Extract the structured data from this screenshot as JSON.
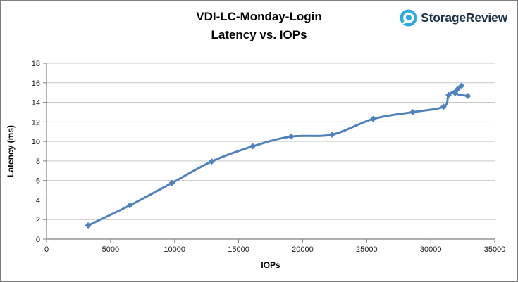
{
  "header": {
    "title_line1": "VDI-LC-Monday-Login",
    "title_line2": "Latency vs. IOPs"
  },
  "logo": {
    "text": "StorageReview",
    "icon": "storagereview-circle-icon",
    "icon_color": "#2FA9E0",
    "text_color": "#1D3448"
  },
  "chart_data": {
    "type": "line",
    "title": "VDI-LC-Monday-Login Latency vs. IOPs",
    "xlabel": "IOPs",
    "ylabel": "Latency (ms)",
    "xlim": [
      0,
      35000
    ],
    "ylim": [
      0,
      18
    ],
    "x_ticks": [
      0,
      5000,
      10000,
      15000,
      20000,
      25000,
      30000,
      35000
    ],
    "y_ticks": [
      0,
      2,
      4,
      6,
      8,
      10,
      12,
      14,
      16,
      18
    ],
    "grid": "horizontal",
    "legend": "none",
    "smooth": true,
    "marker": "diamond",
    "line_color": "#4F81BD",
    "series": [
      {
        "name": "Latency vs. IOPs",
        "points": [
          [
            3250,
            1.4
          ],
          [
            6500,
            3.45
          ],
          [
            9800,
            5.75
          ],
          [
            12900,
            7.95
          ],
          [
            16100,
            9.5
          ],
          [
            19100,
            10.5
          ],
          [
            22300,
            10.7
          ],
          [
            25500,
            12.3
          ],
          [
            28600,
            13.0
          ],
          [
            31000,
            13.55
          ],
          [
            31400,
            14.75
          ],
          [
            32100,
            15.35
          ],
          [
            32400,
            15.7
          ],
          [
            31900,
            14.95
          ],
          [
            32900,
            14.65
          ]
        ]
      }
    ]
  },
  "style": {
    "background": "#FFFFFF",
    "border_color": "#7F7F7F",
    "axis_color": "#808080",
    "grid_color": "#C9C9C9",
    "tick_label_color": "#1A1A1A",
    "axis_title_color": "#000000"
  }
}
